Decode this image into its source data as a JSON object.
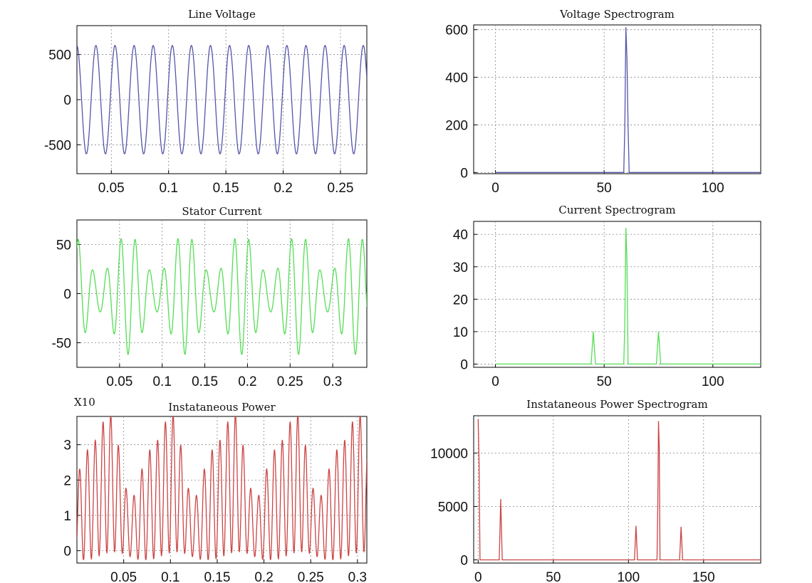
{
  "chart_data": [
    {
      "type": "line",
      "title": "Line Voltage",
      "xlim": [
        0.02,
        0.273
      ],
      "ylim": [
        -820,
        820
      ],
      "xticks": [
        0.05,
        0.1,
        0.15,
        0.2,
        0.25
      ],
      "xtick_labels": [
        "0.05",
        "0.1",
        "0.15",
        "0.2",
        "0.25"
      ],
      "yticks": [
        -500,
        0,
        500
      ],
      "ytick_labels": [
        "-500",
        "0",
        "500"
      ],
      "grid": true,
      "color": "#5555aa",
      "series": [
        {
          "x": [
            0.02,
            0.273
          ],
          "signal": "sinusoid",
          "amplitude": 600,
          "frequency_hz": 60
        }
      ]
    },
    {
      "type": "line",
      "title": "Voltage Spectrogram",
      "xlim": [
        -10,
        122
      ],
      "ylim": [
        -5,
        620
      ],
      "xticks": [
        0,
        50,
        100
      ],
      "xtick_labels": [
        "0",
        "50",
        "100"
      ],
      "yticks": [
        0,
        200,
        400,
        600
      ],
      "ytick_labels": [
        "0",
        "200",
        "400",
        "600"
      ],
      "grid": true,
      "color": "#5555aa",
      "series": [
        {
          "x": [
            0,
            59,
            59.5,
            60,
            60.5,
            61,
            61.5,
            122
          ],
          "y": [
            0,
            0,
            190,
            610,
            480,
            190,
            0,
            0
          ]
        }
      ]
    },
    {
      "type": "line",
      "title": "Stator Current",
      "xlim": [
        0,
        0.34
      ],
      "ylim": [
        -75,
        75
      ],
      "xticks": [
        0.05,
        0.1,
        0.15,
        0.2,
        0.25,
        0.3
      ],
      "xtick_labels": [
        "0.05",
        "0.1",
        "0.15",
        "0.2",
        "0.25",
        "0.3"
      ],
      "yticks": [
        -50,
        0,
        50
      ],
      "ytick_labels": [
        "-50",
        "0",
        "50"
      ],
      "grid": true,
      "color": "#55dd55",
      "series": [
        {
          "x": [
            0,
            0.34
          ],
          "signal": "modulated sinusoid",
          "components": [
            {
              "frequency_hz": 60,
              "amplitude": 40
            },
            {
              "frequency_hz": 45,
              "amplitude": 11
            },
            {
              "frequency_hz": 75,
              "amplitude": 11
            }
          ]
        }
      ]
    },
    {
      "type": "line",
      "title": "Current Spectrogram",
      "xlim": [
        -10,
        122
      ],
      "ylim": [
        -1,
        44
      ],
      "xticks": [
        0,
        50,
        100
      ],
      "xtick_labels": [
        "0",
        "50",
        "100"
      ],
      "yticks": [
        0,
        10,
        20,
        30,
        40
      ],
      "ytick_labels": [
        "0",
        "10",
        "20",
        "30",
        "40"
      ],
      "grid": true,
      "color": "#55dd55",
      "series": [
        {
          "x": [
            0,
            44,
            45,
            46,
            59,
            59.5,
            60,
            60.5,
            61,
            74,
            75,
            76,
            122
          ],
          "y": [
            0,
            0,
            10,
            0,
            0,
            12,
            42,
            32,
            0,
            0,
            10,
            0,
            0
          ]
        }
      ]
    },
    {
      "type": "line",
      "title": "Instataneous Power",
      "title_prefix": "X10",
      "xlim": [
        0,
        0.31
      ],
      "ylim": [
        -0.35,
        3.8
      ],
      "xticks": [
        0.05,
        0.1,
        0.15,
        0.2,
        0.25,
        0.3
      ],
      "xtick_labels": [
        "0.05",
        "0.1",
        "0.15",
        "0.2",
        "0.25",
        "0.3"
      ],
      "yticks": [
        0,
        1,
        2,
        3
      ],
      "ytick_labels": [
        "0",
        "1",
        "2",
        "3"
      ],
      "grid": true,
      "color": "#cc4444",
      "series": [
        {
          "x": [
            0,
            0.31
          ],
          "signal": "product of stator current and line voltage",
          "components_hz": [
            0,
            15,
            105,
            120,
            135
          ]
        }
      ]
    },
    {
      "type": "line",
      "title": "Instataneous Power Spectrogram",
      "xlim": [
        -3,
        188
      ],
      "ylim": [
        -300,
        13500
      ],
      "xticks": [
        0,
        50,
        100,
        150
      ],
      "xtick_labels": [
        "0",
        "50",
        "100",
        "150"
      ],
      "yticks": [
        0,
        5000,
        10000
      ],
      "ytick_labels": [
        "0",
        "5000",
        "10000"
      ],
      "grid": true,
      "color": "#cc4444",
      "series": [
        {
          "x": [
            0,
            0.6,
            1.2,
            14,
            15,
            16,
            104,
            105,
            106,
            119,
            119.5,
            120,
            120.5,
            121,
            134,
            135,
            136,
            188
          ],
          "y": [
            13200,
            9000,
            0,
            0,
            5700,
            0,
            0,
            3200,
            0,
            0,
            5000,
            13000,
            10500,
            0,
            0,
            3100,
            0,
            0
          ]
        }
      ]
    }
  ]
}
